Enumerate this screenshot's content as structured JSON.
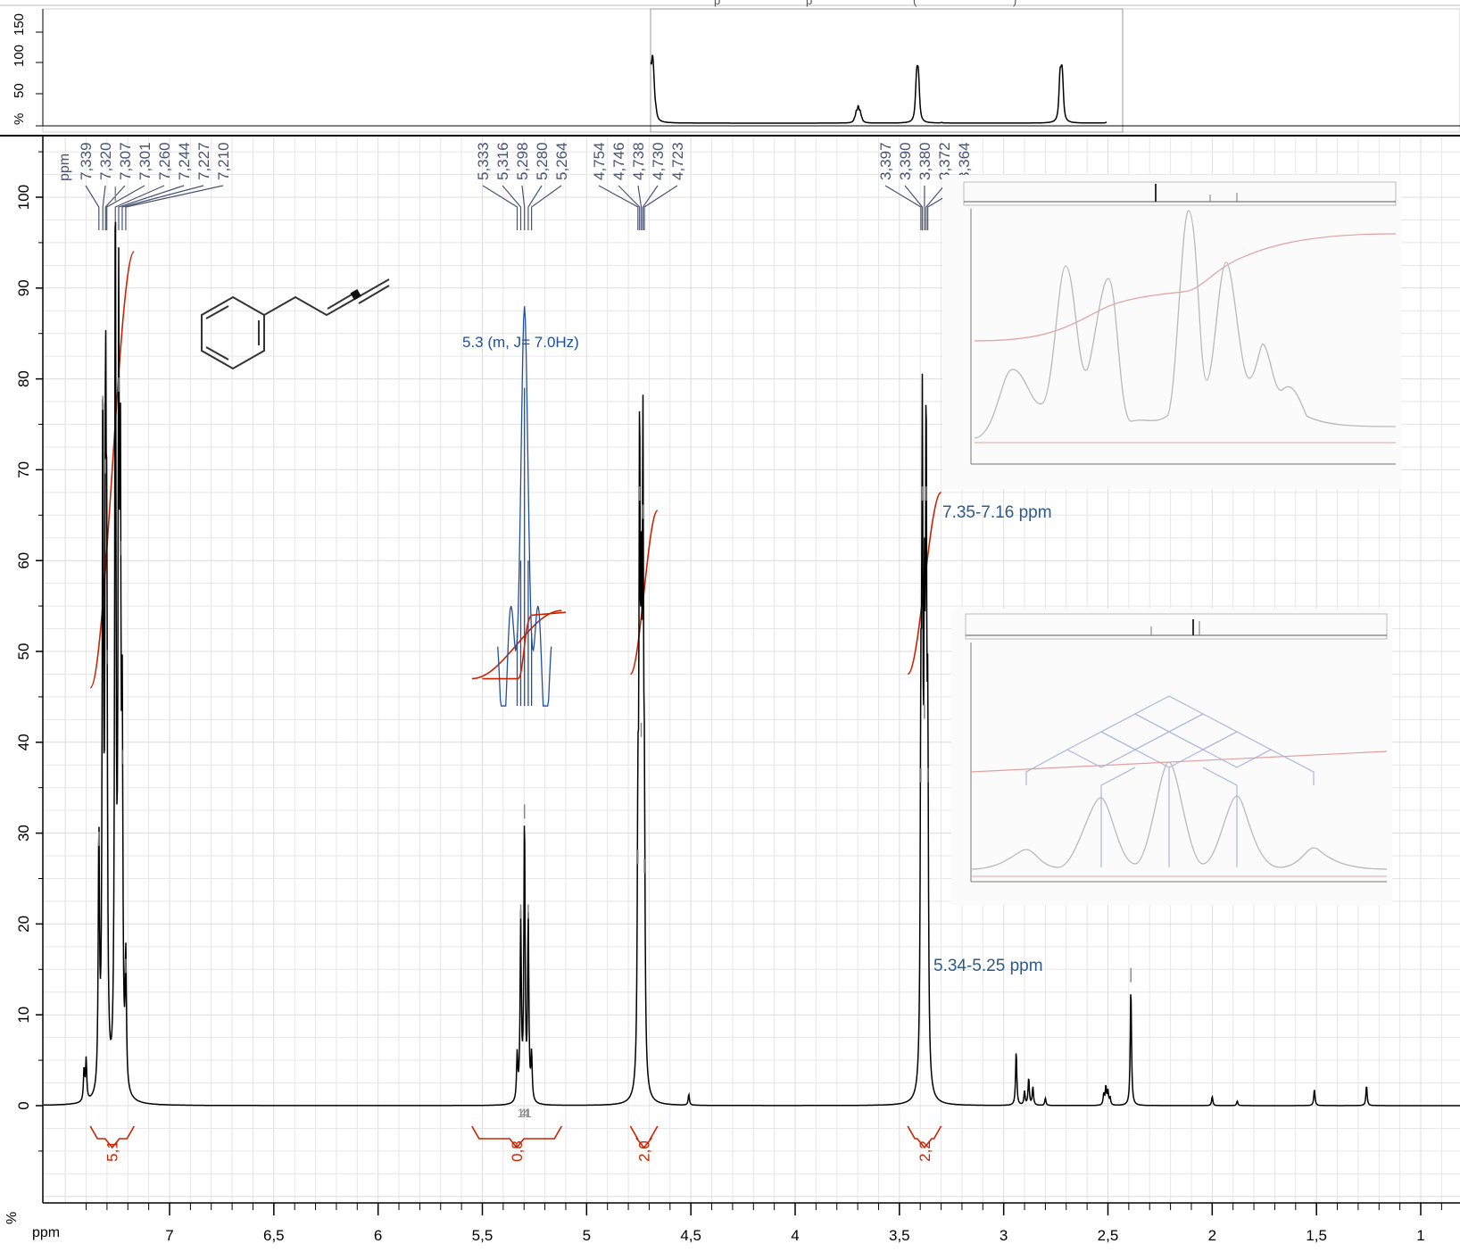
{
  "overview": {
    "y_ticks": [
      "150",
      "100",
      "50",
      "%"
    ],
    "title_fragment_a": "p",
    "title_fragment_b": "p",
    "title_fragment_c": "(",
    "title_fragment_d": ")"
  },
  "chart_data": {
    "type": "line",
    "xlabel": "ppm",
    "ylabel": "%",
    "x_axis_reversed": true,
    "xlim": [
      7.55,
      0.9
    ],
    "ylim": [
      -12,
      108
    ],
    "x_ticks": [
      {
        "value": 7,
        "label": "7"
      },
      {
        "value": 6.5,
        "label": "6,5"
      },
      {
        "value": 6,
        "label": "6"
      },
      {
        "value": 5.5,
        "label": "5,5"
      },
      {
        "value": 5,
        "label": "5"
      },
      {
        "value": 4.5,
        "label": "4,5"
      },
      {
        "value": 4,
        "label": "4"
      },
      {
        "value": 3.5,
        "label": "3,5"
      },
      {
        "value": 3,
        "label": "3"
      },
      {
        "value": 2.5,
        "label": "2,5"
      },
      {
        "value": 2,
        "label": "2"
      },
      {
        "value": 1.5,
        "label": "1,5"
      },
      {
        "value": 1,
        "label": "1"
      }
    ],
    "y_ticks": [
      {
        "value": 100,
        "label": "100"
      },
      {
        "value": 90,
        "label": "90"
      },
      {
        "value": 80,
        "label": "80"
      },
      {
        "value": 70,
        "label": "70"
      },
      {
        "value": 60,
        "label": "60"
      },
      {
        "value": 50,
        "label": "50"
      },
      {
        "value": 40,
        "label": "40"
      },
      {
        "value": 30,
        "label": "30"
      },
      {
        "value": 20,
        "label": "20"
      },
      {
        "value": 10,
        "label": "10"
      },
      {
        "value": 0,
        "label": "0"
      }
    ],
    "grid": true,
    "peaks": [
      {
        "ppm": 7.41,
        "height": 3.5
      },
      {
        "ppm": 7.4,
        "height": 4.5
      },
      {
        "ppm": 7.339,
        "height": 28
      },
      {
        "ppm": 7.32,
        "height": 76
      },
      {
        "ppm": 7.307,
        "height": 69
      },
      {
        "ppm": 7.301,
        "height": 48
      },
      {
        "ppm": 7.26,
        "height": 99
      },
      {
        "ppm": 7.244,
        "height": 78
      },
      {
        "ppm": 7.236,
        "height": 60
      },
      {
        "ppm": 7.227,
        "height": 37
      },
      {
        "ppm": 7.21,
        "height": 14
      },
      {
        "ppm": 5.333,
        "height": 5
      },
      {
        "ppm": 5.316,
        "height": 20
      },
      {
        "ppm": 5.298,
        "height": 31
      },
      {
        "ppm": 5.28,
        "height": 20
      },
      {
        "ppm": 5.264,
        "height": 5
      },
      {
        "ppm": 4.754,
        "height": 26
      },
      {
        "ppm": 4.746,
        "height": 66
      },
      {
        "ppm": 4.738,
        "height": 40
      },
      {
        "ppm": 4.73,
        "height": 64
      },
      {
        "ppm": 4.723,
        "height": 25
      },
      {
        "ppm": 4.51,
        "height": 1.2
      },
      {
        "ppm": 3.397,
        "height": 35
      },
      {
        "ppm": 3.39,
        "height": 66
      },
      {
        "ppm": 3.38,
        "height": 42
      },
      {
        "ppm": 3.372,
        "height": 66
      },
      {
        "ppm": 3.364,
        "height": 35
      },
      {
        "ppm": 2.94,
        "height": 6
      },
      {
        "ppm": 2.9,
        "height": 1.5
      },
      {
        "ppm": 2.88,
        "height": 3
      },
      {
        "ppm": 2.86,
        "height": 2
      },
      {
        "ppm": 2.8,
        "height": 0.8
      },
      {
        "ppm": 2.52,
        "height": 1.2
      },
      {
        "ppm": 2.51,
        "height": 2
      },
      {
        "ppm": 2.5,
        "height": 1.5
      },
      {
        "ppm": 2.49,
        "height": 0.8
      },
      {
        "ppm": 2.39,
        "height": 13
      },
      {
        "ppm": 2.0,
        "height": 1
      },
      {
        "ppm": 1.88,
        "height": 0.5
      },
      {
        "ppm": 1.51,
        "height": 1.8
      },
      {
        "ppm": 1.26,
        "height": 2.2
      }
    ],
    "peak_labels": {
      "ppm_word": "ppm",
      "aromatic": [
        "7,339",
        "7,320",
        "7,307",
        "7,301",
        "7,260",
        "7,244",
        "7,227",
        "7,210"
      ],
      "olefinic": [
        "5,333",
        "5,316",
        "5,298",
        "5,280",
        "5,264"
      ],
      "allenic": [
        "4,754",
        "4,746",
        "4,738",
        "4,730",
        "4,723"
      ],
      "benzylic": [
        "3,397",
        "3,390",
        "3,380",
        "3,372",
        "3,364"
      ]
    },
    "integrals": [
      {
        "from": 7.38,
        "to": 7.17,
        "label": "5,1"
      },
      {
        "from": 5.55,
        "to": 5.12,
        "label": "0,8"
      },
      {
        "from": 4.79,
        "to": 4.66,
        "label": "2,0"
      },
      {
        "from": 3.46,
        "to": 3.3,
        "label": "2,2"
      }
    ],
    "multiplet_annotation": "5.3 (m, J= 7.0Hz)",
    "multiplet_small_labels": [
      "1",
      "4",
      "4",
      "1"
    ],
    "inset_caption_1": "7.35-7.16 ppm",
    "inset_caption_2": "5.34-5.25 ppm"
  },
  "colors": {
    "spectrum": "#000000",
    "integral": "#cc2200",
    "multiplet": "#1f4fa0",
    "peak_label": "#4a5272",
    "caption": "#2f5a86",
    "grid": "#e6e6e6"
  }
}
